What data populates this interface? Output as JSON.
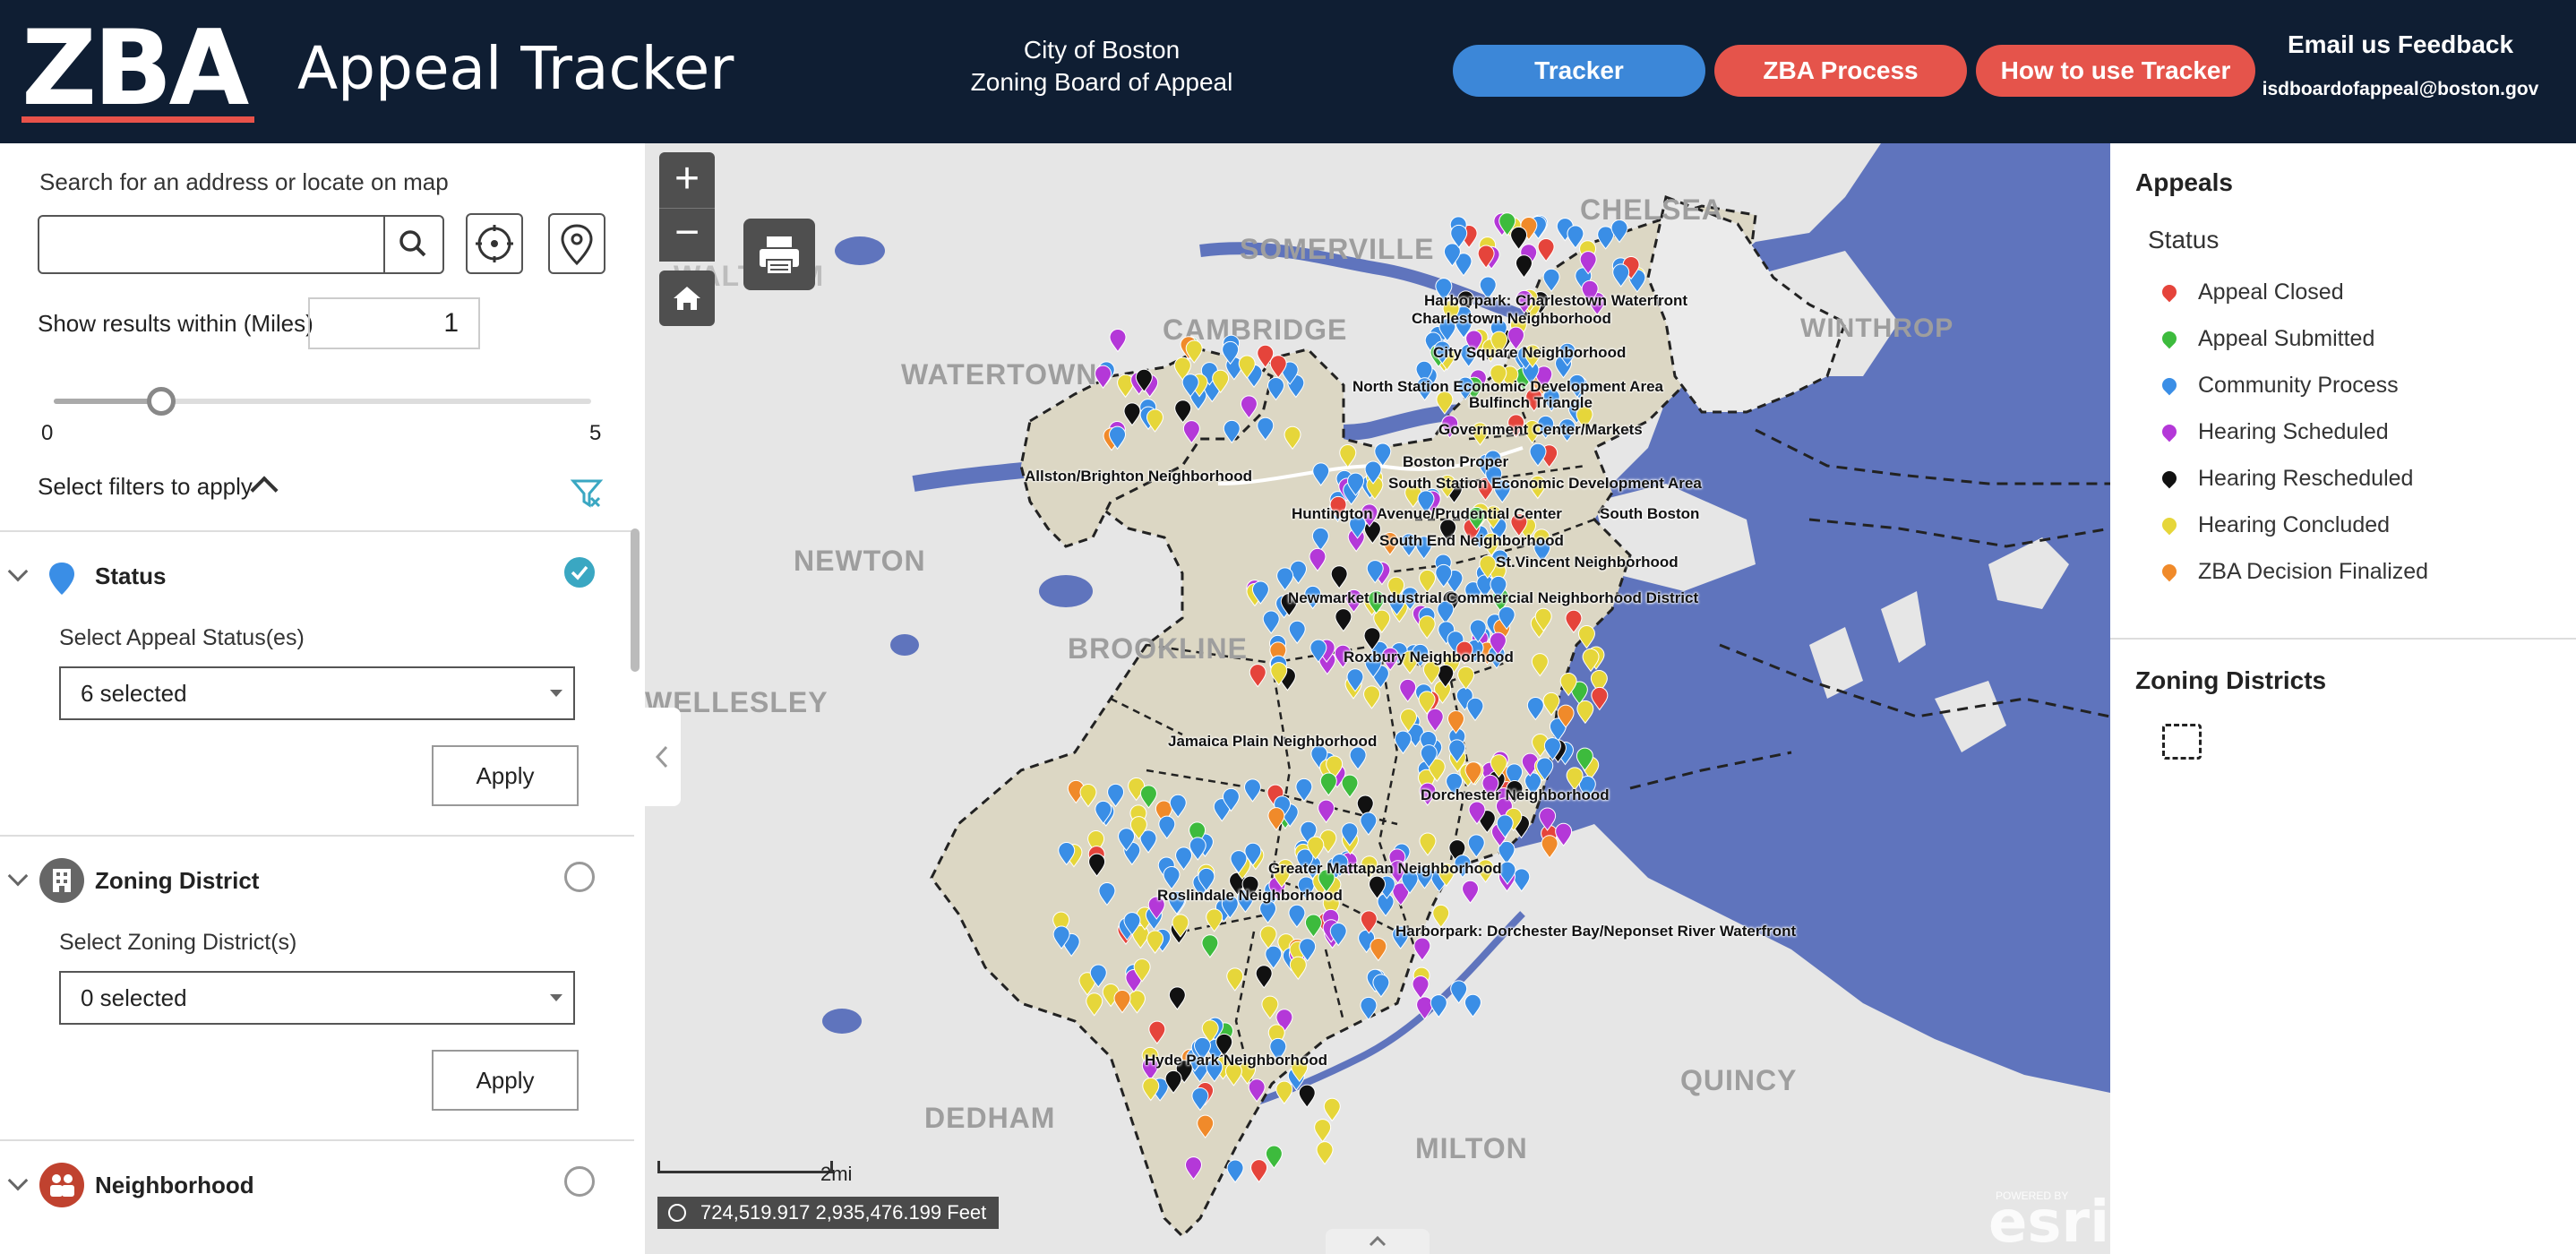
{
  "header": {
    "logo": "ZBA",
    "app_title": "Appeal Tracker",
    "city_line1": "City of Boston",
    "city_line2": "Zoning Board of Appeal",
    "buttons": [
      {
        "label": "Tracker",
        "color": "#3c87d8"
      },
      {
        "label": "ZBA Process",
        "color": "#e5544b"
      },
      {
        "label": "How to use Tracker",
        "color": "#e5544b"
      }
    ],
    "feedback_title": "Email us Feedback",
    "feedback_email": "isdboardofappeal@boston.gov"
  },
  "left_panel": {
    "search_label": "Search for an address or locate on map",
    "search_value": "",
    "radius_label": "Show results within (Miles)",
    "radius_value": "1",
    "slider": {
      "min": "0",
      "max": "5",
      "value": 1
    },
    "filters_label": "Select filters to apply",
    "sections": [
      {
        "title": "Status",
        "sub_label": "Select Appeal Status(es)",
        "selected": "6 selected",
        "apply": "Apply",
        "active": true,
        "icon": "pin-icon"
      },
      {
        "title": "Zoning District",
        "sub_label": "Select Zoning District(s)",
        "selected": "0 selected",
        "apply": "Apply",
        "active": false,
        "icon": "building-icon"
      },
      {
        "title": "Neighborhood",
        "active": false,
        "icon": "people-icon"
      }
    ]
  },
  "map": {
    "cities": [
      "SOMERVILLE",
      "CHELSEA",
      "CAMBRIDGE",
      "WINTHROP",
      "WATERTOWN",
      "NEWTON",
      "BROOKLINE",
      "QUINCY",
      "DEDHAM",
      "MILTON",
      "WALTHAM",
      "WELLESLEY"
    ],
    "neighborhoods": [
      "Harborpark: Charlestown Waterfront",
      "Charlestown Neighborhood",
      "City Square Neighborhood",
      "North Station Economic Development Area",
      "Bulfinch Triangle",
      "Government Center/Markets",
      "Allston/Brighton Neighborhood",
      "Boston Proper",
      "South Station Economic Development Area",
      "Huntington Avenue/Prudential Center",
      "South Boston",
      "South End Neighborhood",
      "St.Vincent Neighborhood",
      "Newmarket Industrial Commercial Neighborhood District",
      "Roxbury Neighborhood",
      "Jamaica Plain Neighborhood",
      "Dorchester Neighborhood",
      "Greater Mattapan Neighborhood",
      "Roslindale Neighborhood",
      "Harborpark: Dorchester Bay/Neponset River Waterfront",
      "Hyde Park Neighborhood"
    ],
    "scale_label": "2mi",
    "coordinates": "724,519.917 2,935,476.199 Feet",
    "attribution": "esri",
    "attribution_small": "POWERED BY",
    "water_color": "#5f74bd",
    "land_color": "#e6e6e6"
  },
  "legend": {
    "appeals_title": "Appeals",
    "status_title": "Status",
    "items": [
      {
        "label": "Appeal Closed",
        "color": "#e5443b"
      },
      {
        "label": "Appeal Submitted",
        "color": "#3dbb3d"
      },
      {
        "label": "Community Process",
        "color": "#3a8ee6"
      },
      {
        "label": "Hearing Scheduled",
        "color": "#b438d8"
      },
      {
        "label": "Hearing Rescheduled",
        "color": "#111111"
      },
      {
        "label": "Hearing Concluded",
        "color": "#e6d63a"
      },
      {
        "label": "ZBA Decision Finalized",
        "color": "#f08a2a"
      }
    ],
    "zoning_title": "Zoning Districts"
  }
}
